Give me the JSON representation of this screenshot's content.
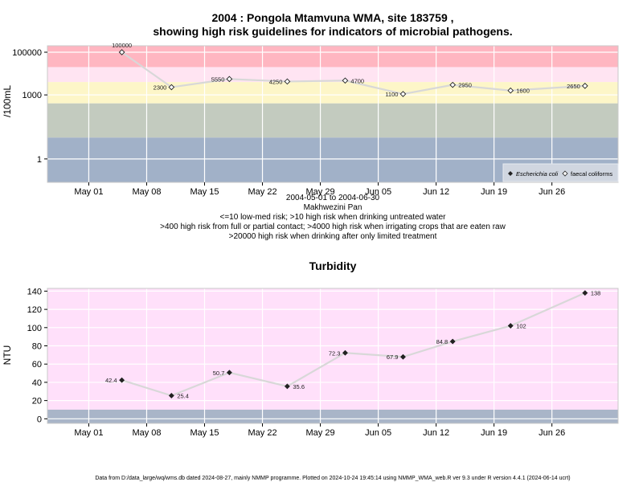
{
  "colors": {
    "very_high": "#ffb6c1",
    "pinkish": "#ffe4f2",
    "yellow": "#fdf6c8",
    "green": "#c3cbbf",
    "blue": "#a1b1c8",
    "turb_bg": "#ffe0fa",
    "turb_low": "#a9b5c8",
    "grid": "#ffffff",
    "line": "#d8d8d8"
  },
  "top_chart": {
    "title_line1": "2004 : Pongola Mtamvuna WMA, site 183759 ,",
    "title_line2": "showing high risk guidelines for indicators of microbial pathogens.",
    "ylabel": "/100mL",
    "captions": [
      "2004-05-01 to 2004-06-30",
      "Makhwezini Pan",
      "<=10 low-med risk; >10 high risk when drinking untreated water",
      ">400 high risk from full or partial contact; >4000 high risk when irrigating crops that are eaten raw",
      ">20000 high risk when drinking after only limited treatment"
    ],
    "legend": [
      {
        "name": "Escherichia coli",
        "symbol": "filled-diamond",
        "italic": true
      },
      {
        "name": "faecal coliforms",
        "symbol": "open-diamond",
        "italic": false
      }
    ]
  },
  "bottom_chart": {
    "title": "Turbidity",
    "ylabel": "NTU"
  },
  "footer": "Data from D:/data_large/wq/wms.db dated 2024-08-27, mainly NMMP programme. Plotted on 2024-10-24 19:45:14 using NMMP_WMA_web.R ver 9.3 under R version 4.4.1 (2024-06-14 ucrt)",
  "chart_data": [
    {
      "type": "line",
      "title": "2004 : Pongola Mtamvuna WMA, site 183759 , showing high risk guidelines for indicators of microbial pathogens.",
      "ylabel": "/100mL",
      "yscale": "log",
      "ylim": [
        0.08,
        200000
      ],
      "yticks": [
        1,
        1000,
        100000
      ],
      "ytick_labels": [
        "1",
        "1000",
        "100000"
      ],
      "xlim": [
        "2004-04-26",
        "2004-07-04"
      ],
      "xticks": [
        "2004-05-01",
        "2004-05-08",
        "2004-05-15",
        "2004-05-22",
        "2004-05-29",
        "2004-06-05",
        "2004-06-12",
        "2004-06-19",
        "2004-06-26"
      ],
      "xtick_labels": [
        "May 01",
        "May 08",
        "May 15",
        "May 22",
        "May 29",
        "Jun 05",
        "Jun 12",
        "Jun 19",
        "Jun 26"
      ],
      "risk_bands": [
        {
          "from": 20000,
          "to": 200000,
          "color": "#ffb6c1"
        },
        {
          "from": 4000,
          "to": 20000,
          "color": "#ffe4f2"
        },
        {
          "from": 400,
          "to": 4000,
          "color": "#fdf6c8"
        },
        {
          "from": 10,
          "to": 400,
          "color": "#c3cbbf"
        },
        {
          "from": 0.08,
          "to": 10,
          "color": "#a1b1c8"
        }
      ],
      "grid": true,
      "legend_position": "bottom-right",
      "series": [
        {
          "name": "faecal coliforms",
          "x": [
            "2004-05-05",
            "2004-05-11",
            "2004-05-18",
            "2004-05-25",
            "2004-06-01",
            "2004-06-08",
            "2004-06-14",
            "2004-06-21",
            "2004-06-30"
          ],
          "y": [
            100000,
            2300,
            5550,
            4250,
            4700,
            1100,
            2950,
            1600,
            2650
          ],
          "labels": [
            "100000",
            "2300",
            "5550",
            "4250",
            "4700",
            "1100",
            "2950",
            "1600",
            "2650"
          ]
        }
      ]
    },
    {
      "type": "line",
      "title": "Turbidity",
      "ylabel": "NTU",
      "ylim": [
        -5,
        143
      ],
      "yticks": [
        0,
        20,
        40,
        60,
        80,
        100,
        120,
        140
      ],
      "ytick_labels": [
        "0",
        "20",
        "40",
        "60",
        "80",
        "100",
        "120",
        "140"
      ],
      "xlim": [
        "2004-04-26",
        "2004-07-04"
      ],
      "xticks": [
        "2004-05-01",
        "2004-05-08",
        "2004-05-15",
        "2004-05-22",
        "2004-05-29",
        "2004-06-05",
        "2004-06-12",
        "2004-06-19",
        "2004-06-26"
      ],
      "xtick_labels": [
        "May 01",
        "May 08",
        "May 15",
        "May 22",
        "May 29",
        "Jun 05",
        "Jun 12",
        "Jun 19",
        "Jun 26"
      ],
      "bands": [
        {
          "from": 10,
          "to": 143,
          "color": "#ffe0fa"
        },
        {
          "from": -5,
          "to": 10,
          "color": "#a9b5c8"
        }
      ],
      "grid": true,
      "series": [
        {
          "name": "",
          "x": [
            "2004-05-05",
            "2004-05-11",
            "2004-05-18",
            "2004-05-25",
            "2004-06-01",
            "2004-06-08",
            "2004-06-14",
            "2004-06-21",
            "2004-06-30"
          ],
          "y": [
            42.4,
            25.4,
            50.7,
            35.6,
            72.3,
            67.9,
            84.8,
            102,
            138
          ],
          "labels": [
            "42.4",
            "25.4",
            "50.7",
            "35.6",
            "72.3",
            "67.9",
            "84.8",
            "102",
            "138"
          ]
        }
      ]
    }
  ]
}
